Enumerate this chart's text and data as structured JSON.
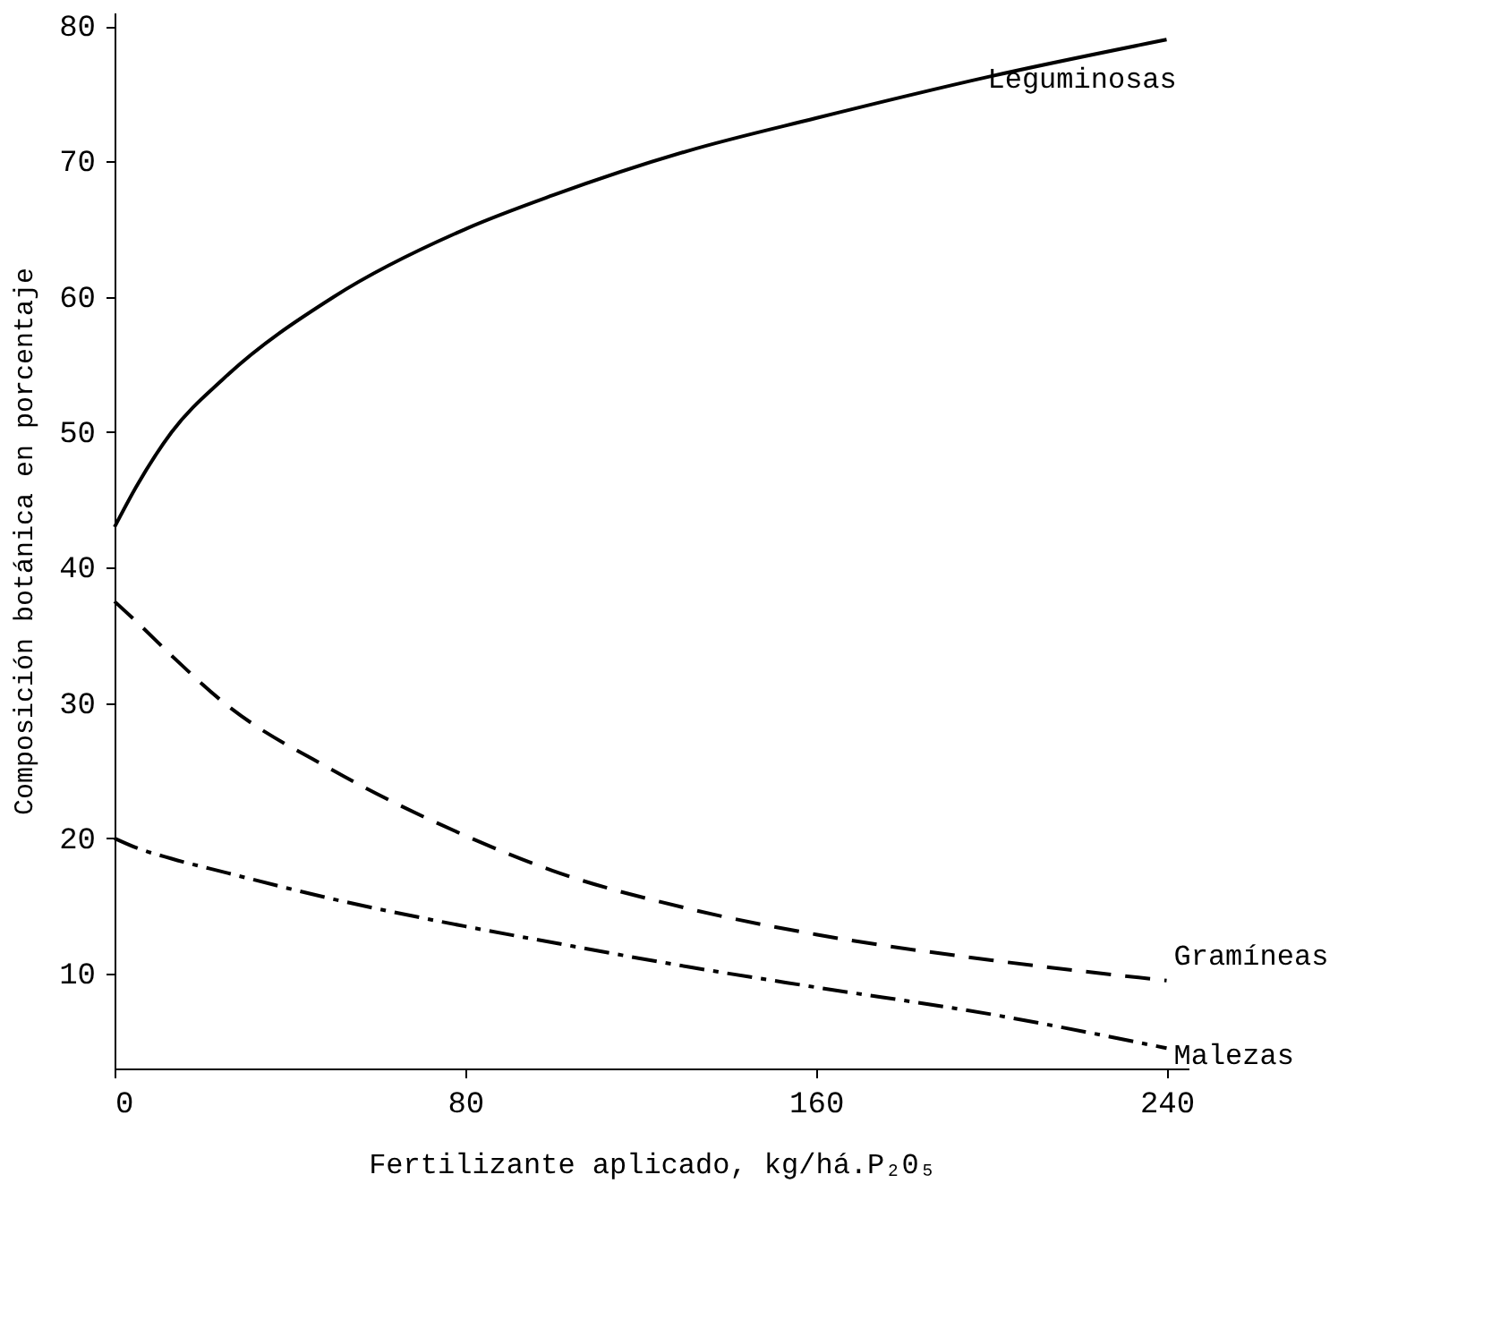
{
  "chart_data": {
    "type": "line",
    "xlabel": "Fertilizante aplicado, kg/há.P₂0₅",
    "ylabel": "Composición botánica en porcentaje",
    "x": [
      0,
      5,
      13,
      25,
      50,
      80,
      100,
      131,
      160,
      200,
      240
    ],
    "series": [
      {
        "name": "Leguminosas",
        "color": "#000000",
        "line_style": "solid",
        "values": [
          43,
          46,
          50,
          54,
          60,
          65,
          67.5,
          70.8,
          73.2,
          76.3,
          79
        ]
      },
      {
        "name": "Gramíneas",
        "color": "#000000",
        "line_style": "dashed",
        "values": [
          37.5,
          36,
          33.5,
          30,
          25,
          20.2,
          17.6,
          14.8,
          12.9,
          11,
          9.5
        ]
      },
      {
        "name": "Malezas",
        "color": "#000000",
        "line_style": "dotted",
        "values": [
          20,
          19.3,
          18.5,
          17.5,
          15.5,
          13.5,
          12.3,
          10.5,
          9,
          7,
          4.5
        ]
      }
    ],
    "xlim": [
      0,
      245
    ],
    "ylim": [
      3,
      81
    ],
    "xticks": [
      0,
      80,
      160,
      240
    ],
    "yticks": [
      10,
      20,
      30,
      40,
      50,
      60,
      70,
      80
    ],
    "grid": false,
    "legend": false,
    "marker": "none"
  }
}
